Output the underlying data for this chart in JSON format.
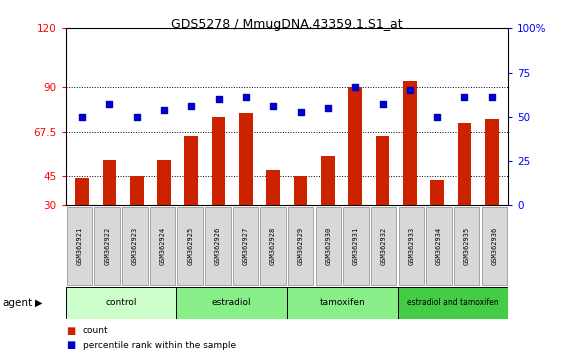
{
  "title": "GDS5278 / MmugDNA.43359.1.S1_at",
  "samples": [
    "GSM362921",
    "GSM362922",
    "GSM362923",
    "GSM362924",
    "GSM362925",
    "GSM362926",
    "GSM362927",
    "GSM362928",
    "GSM362929",
    "GSM362930",
    "GSM362931",
    "GSM362932",
    "GSM362933",
    "GSM362934",
    "GSM362935",
    "GSM362936"
  ],
  "counts": [
    44,
    53,
    45,
    53,
    65,
    75,
    77,
    48,
    45,
    55,
    90,
    65,
    93,
    43,
    72,
    74
  ],
  "percentile_ranks": [
    50,
    57,
    50,
    54,
    56,
    60,
    61,
    56,
    53,
    55,
    67,
    57,
    65,
    50,
    61,
    61
  ],
  "groups": [
    {
      "name": "control",
      "start": 0,
      "end": 4
    },
    {
      "name": "estradiol",
      "start": 4,
      "end": 8
    },
    {
      "name": "tamoxifen",
      "start": 8,
      "end": 12
    },
    {
      "name": "estradiol and tamoxifen",
      "start": 12,
      "end": 16
    }
  ],
  "group_colors": [
    "#ccffcc",
    "#88ee88",
    "#88ee88",
    "#44cc44"
  ],
  "bar_color": "#cc2200",
  "dot_color": "#0000cc",
  "ylim_left": [
    30,
    120
  ],
  "ylim_right": [
    0,
    100
  ],
  "yticks_left": [
    30,
    45,
    67.5,
    90,
    120
  ],
  "ytick_labels_left": [
    "30",
    "45",
    "67.5",
    "90",
    "120"
  ],
  "yticks_right": [
    0,
    25,
    50,
    75,
    100
  ],
  "ytick_labels_right": [
    "0",
    "25",
    "50",
    "75",
    "100%"
  ],
  "grid_values": [
    45,
    67.5,
    90
  ],
  "agent_label": "agent",
  "legend_count_label": "count",
  "legend_pct_label": "percentile rank within the sample"
}
